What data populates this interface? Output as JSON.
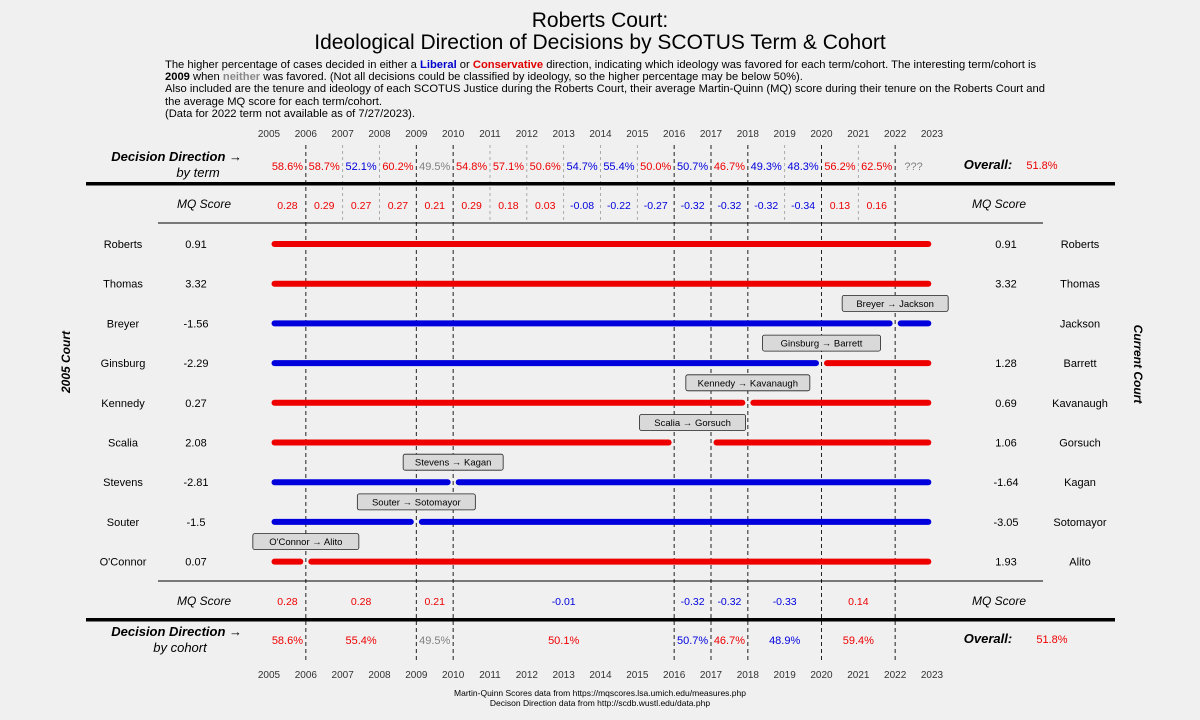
{
  "header": {
    "title_line1": "Roberts Court:",
    "title_line2": "Ideological Direction of Decisions by SCOTUS Term & Cohort",
    "desc": {
      "p1": "The higher percentage of cases decided in either a ",
      "liberal": "Liberal",
      "p2": " or ",
      "conservative": "Conservative",
      "p3": " direction, indicating which ideology was favored for each term/cohort. The interesting term/cohort is ",
      "year": "2009",
      "p4": " when ",
      "neither": "neither",
      "p5": " was favored. (Not all decisions could be classified by ideology, so the higher percentage may be below 50%).",
      "line2": "Also included are the tenure and ideology of each SCOTUS Justice during the Roberts Court, their average Martin-Quinn (MQ) score during their tenure on the Roberts Court and the average MQ score for each term/cohort.",
      "line3": "(Data for 2022 term not available as of 7/27/2023)."
    }
  },
  "colors": {
    "liberal": "#0000dd",
    "conservative": "#ee0000",
    "neither": "#808080"
  },
  "chart_data": {
    "type": "timeline",
    "x_ticks": [
      "2005",
      "2006",
      "2007",
      "2008",
      "2009",
      "2010",
      "2011",
      "2012",
      "2013",
      "2014",
      "2015",
      "2016",
      "2017",
      "2018",
      "2019",
      "2020",
      "2021",
      "2022",
      "2023"
    ],
    "xlim": [
      2005,
      2023
    ],
    "cohort_boundaries": [
      2006,
      2009,
      2010,
      2016,
      2017,
      2018,
      2020,
      2022
    ],
    "term_labels": {
      "left_label": "Decision Direction →",
      "left_sub": "by term",
      "overall_label": "Overall:",
      "overall_value": "51.8%",
      "overall_lean": "con",
      "values": [
        {
          "term": 2005,
          "text": "58.6%",
          "lean": "con"
        },
        {
          "term": 2006,
          "text": "58.7%",
          "lean": "con"
        },
        {
          "term": 2007,
          "text": "52.1%",
          "lean": "lib"
        },
        {
          "term": 2008,
          "text": "60.2%",
          "lean": "con"
        },
        {
          "term": 2009,
          "text": "49.5%",
          "lean": "neither"
        },
        {
          "term": 2010,
          "text": "54.8%",
          "lean": "con"
        },
        {
          "term": 2011,
          "text": "57.1%",
          "lean": "con"
        },
        {
          "term": 2012,
          "text": "50.6%",
          "lean": "con"
        },
        {
          "term": 2013,
          "text": "54.7%",
          "lean": "lib"
        },
        {
          "term": 2014,
          "text": "55.4%",
          "lean": "lib"
        },
        {
          "term": 2015,
          "text": "50.0%",
          "lean": "con"
        },
        {
          "term": 2016,
          "text": "50.7%",
          "lean": "lib"
        },
        {
          "term": 2017,
          "text": "46.7%",
          "lean": "con"
        },
        {
          "term": 2018,
          "text": "49.3%",
          "lean": "lib"
        },
        {
          "term": 2019,
          "text": "48.3%",
          "lean": "lib"
        },
        {
          "term": 2020,
          "text": "56.2%",
          "lean": "con"
        },
        {
          "term": 2021,
          "text": "62.5%",
          "lean": "con"
        },
        {
          "term": 2022,
          "text": "???",
          "lean": "neither"
        }
      ]
    },
    "term_mq": {
      "label": "MQ Score",
      "right_label": "MQ Score",
      "values": [
        {
          "term": 2005,
          "text": "0.28",
          "lean": "con"
        },
        {
          "term": 2006,
          "text": "0.29",
          "lean": "con"
        },
        {
          "term": 2007,
          "text": "0.27",
          "lean": "con"
        },
        {
          "term": 2008,
          "text": "0.27",
          "lean": "con"
        },
        {
          "term": 2009,
          "text": "0.21",
          "lean": "con"
        },
        {
          "term": 2010,
          "text": "0.29",
          "lean": "con"
        },
        {
          "term": 2011,
          "text": "0.18",
          "lean": "con"
        },
        {
          "term": 2012,
          "text": "0.03",
          "lean": "con"
        },
        {
          "term": 2013,
          "text": "-0.08",
          "lean": "lib"
        },
        {
          "term": 2014,
          "text": "-0.22",
          "lean": "lib"
        },
        {
          "term": 2015,
          "text": "-0.27",
          "lean": "lib"
        },
        {
          "term": 2016,
          "text": "-0.32",
          "lean": "lib"
        },
        {
          "term": 2017,
          "text": "-0.32",
          "lean": "lib"
        },
        {
          "term": 2018,
          "text": "-0.32",
          "lean": "lib"
        },
        {
          "term": 2019,
          "text": "-0.34",
          "lean": "lib"
        },
        {
          "term": 2020,
          "text": "0.13",
          "lean": "con"
        },
        {
          "term": 2021,
          "text": "0.16",
          "lean": "con"
        }
      ]
    },
    "justices": [
      {
        "left": "Roberts",
        "left_mq": "0.91",
        "right": "Roberts",
        "right_mq": "0.91",
        "segments": [
          {
            "start": 2005.15,
            "end": 2022.9,
            "lean": "con"
          }
        ]
      },
      {
        "left": "Thomas",
        "left_mq": "3.32",
        "right": "Thomas",
        "right_mq": "3.32",
        "segments": [
          {
            "start": 2005.15,
            "end": 2022.9,
            "lean": "con"
          }
        ]
      },
      {
        "left": "Breyer",
        "left_mq": "-1.56",
        "right": "Jackson",
        "right_mq": "",
        "segments": [
          {
            "start": 2005.15,
            "end": 2021.85,
            "lean": "lib"
          },
          {
            "start": 2022.15,
            "end": 2022.9,
            "lean": "lib"
          }
        ],
        "transition": {
          "text": "Breyer → Jackson",
          "at": 2022.0
        }
      },
      {
        "left": "Ginsburg",
        "left_mq": "-2.29",
        "right": "Barrett",
        "right_mq": "1.28",
        "segments": [
          {
            "start": 2005.15,
            "end": 2019.85,
            "lean": "lib"
          },
          {
            "start": 2020.15,
            "end": 2022.9,
            "lean": "con"
          }
        ],
        "transition": {
          "text": "Ginsburg → Barrett",
          "at": 2020.0
        }
      },
      {
        "left": "Kennedy",
        "left_mq": "0.27",
        "right": "Kavanaugh",
        "right_mq": "0.69",
        "segments": [
          {
            "start": 2005.15,
            "end": 2017.85,
            "lean": "con"
          },
          {
            "start": 2018.15,
            "end": 2022.9,
            "lean": "con"
          }
        ],
        "transition": {
          "text": "Kennedy → Kavanaugh",
          "at": 2018.0
        }
      },
      {
        "left": "Scalia",
        "left_mq": "2.08",
        "right": "Gorsuch",
        "right_mq": "1.06",
        "segments": [
          {
            "start": 2005.15,
            "end": 2015.85,
            "lean": "con"
          },
          {
            "start": 2017.15,
            "end": 2022.9,
            "lean": "con"
          }
        ],
        "transition": {
          "text": "Scalia → Gorsuch",
          "at": 2016.5
        }
      },
      {
        "left": "Stevens",
        "left_mq": "-2.81",
        "right": "Kagan",
        "right_mq": "-1.64",
        "segments": [
          {
            "start": 2005.15,
            "end": 2009.85,
            "lean": "lib"
          },
          {
            "start": 2010.15,
            "end": 2022.9,
            "lean": "lib"
          }
        ],
        "transition": {
          "text": "Stevens → Kagan",
          "at": 2010.0
        }
      },
      {
        "left": "Souter",
        "left_mq": "-1.5",
        "right": "Sotomayor",
        "right_mq": "-3.05",
        "segments": [
          {
            "start": 2005.15,
            "end": 2008.85,
            "lean": "lib"
          },
          {
            "start": 2009.15,
            "end": 2022.9,
            "lean": "lib"
          }
        ],
        "transition": {
          "text": "Souter → Sotomayor",
          "at": 2009.0
        }
      },
      {
        "left": "O'Connor",
        "left_mq": "0.07",
        "right": "Alito",
        "right_mq": "1.93",
        "segments": [
          {
            "start": 2005.15,
            "end": 2005.85,
            "lean": "con"
          },
          {
            "start": 2006.15,
            "end": 2022.9,
            "lean": "con"
          }
        ],
        "transition": {
          "text": "O'Connor → Alito",
          "at": 2006.0
        }
      }
    ],
    "left_axis_title": "2005 Court",
    "right_axis_title": "Current Court",
    "cohort_mq": {
      "label": "MQ Score",
      "right_label": "MQ Score",
      "values": [
        {
          "x": 2005.5,
          "text": "0.28",
          "lean": "con"
        },
        {
          "x": 2007.5,
          "text": "0.28",
          "lean": "con"
        },
        {
          "x": 2009.5,
          "text": "0.21",
          "lean": "con"
        },
        {
          "x": 2013.0,
          "text": "-0.01",
          "lean": "lib"
        },
        {
          "x": 2016.5,
          "text": "-0.32",
          "lean": "lib"
        },
        {
          "x": 2017.5,
          "text": "-0.32",
          "lean": "lib"
        },
        {
          "x": 2019.0,
          "text": "-0.33",
          "lean": "lib"
        },
        {
          "x": 2021.0,
          "text": "0.14",
          "lean": "con"
        }
      ]
    },
    "cohort_direction": {
      "left_label": "Decision Direction →",
      "left_sub": "by cohort",
      "overall_label": "Overall:",
      "overall_value": "51.8%",
      "overall_lean": "con",
      "values": [
        {
          "x": 2005.5,
          "text": "58.6%",
          "lean": "con"
        },
        {
          "x": 2007.5,
          "text": "55.4%",
          "lean": "con"
        },
        {
          "x": 2009.5,
          "text": "49.5%",
          "lean": "neither"
        },
        {
          "x": 2013.0,
          "text": "50.1%",
          "lean": "con"
        },
        {
          "x": 2016.5,
          "text": "50.7%",
          "lean": "lib"
        },
        {
          "x": 2017.5,
          "text": "46.7%",
          "lean": "con"
        },
        {
          "x": 2019.0,
          "text": "48.9%",
          "lean": "lib"
        },
        {
          "x": 2021.0,
          "text": "59.4%",
          "lean": "con"
        }
      ]
    }
  },
  "footer": {
    "line1": "Martin-Quinn Scores data from https://mqscores.lsa.umich.edu/measures.php",
    "line2": "Decison Direction data from http://scdb.wustl.edu/data.php"
  }
}
